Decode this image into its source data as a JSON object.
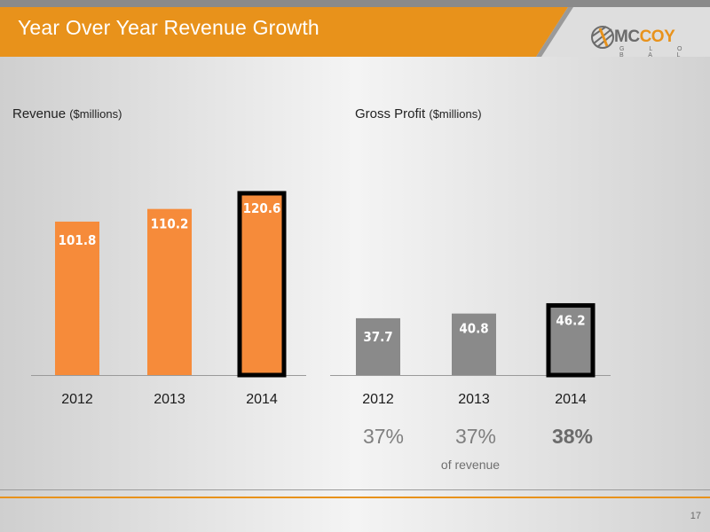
{
  "slide": {
    "title": "Year Over Year Revenue Growth",
    "page_number": "17",
    "colors": {
      "orange": "#e8921b",
      "bar_orange": "#f68b3a",
      "bar_gray": "#8a8a8a",
      "highlight_border": "#000000"
    }
  },
  "logo": {
    "text_mc": "MC",
    "text_coy": "COY",
    "subtitle": "G L O B A L"
  },
  "revenue_panel": {
    "title": "Revenue",
    "unit": "($millions)"
  },
  "profit_panel": {
    "title": "Gross Profit",
    "unit": "($millions)"
  },
  "margins": {
    "values": [
      "37%",
      "37%",
      "38%"
    ],
    "note": "of revenue"
  },
  "chart_data": [
    {
      "type": "bar",
      "title": "Revenue ($millions)",
      "categories": [
        "2012",
        "2013",
        "2014"
      ],
      "values": [
        101.8,
        110.2,
        120.6
      ],
      "value_labels": [
        "101.8",
        "110.2",
        "120.6"
      ],
      "highlighted": "2014",
      "color": "#f68b3a"
    },
    {
      "type": "bar",
      "title": "Gross Profit ($millions)",
      "categories": [
        "2012",
        "2013",
        "2014"
      ],
      "values": [
        37.7,
        40.8,
        46.2
      ],
      "value_labels": [
        "37.7",
        "40.8",
        "46.2"
      ],
      "highlighted": "2014",
      "color": "#8a8a8a"
    }
  ]
}
